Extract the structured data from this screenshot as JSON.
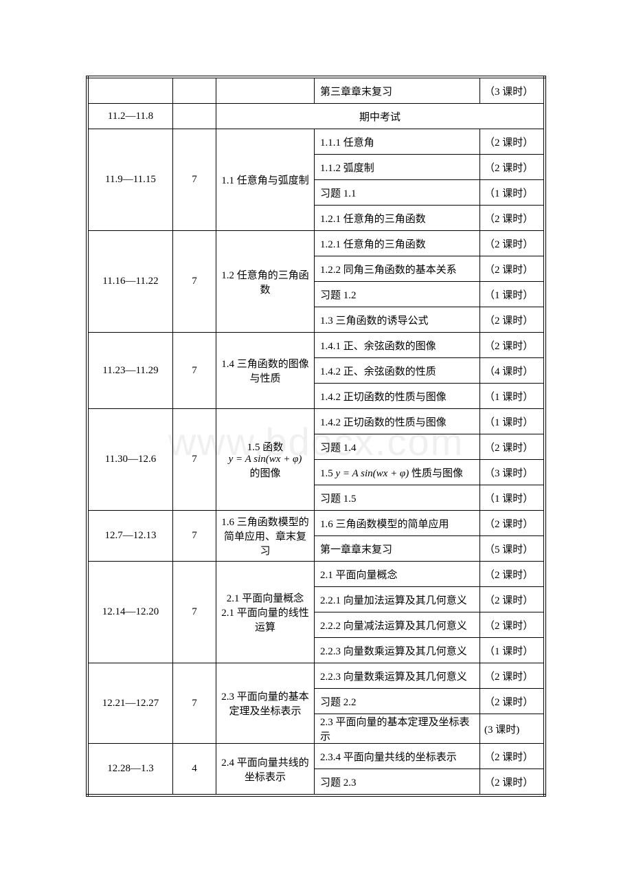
{
  "watermark": "www.bdocx.com",
  "rows": [
    {
      "period": "",
      "count": "",
      "section": "",
      "topic": "第三章章末复习",
      "hours": "（3 课时）"
    },
    {
      "period": "11.2—11.8",
      "count": "",
      "exam": "期中考试"
    },
    {
      "period": "11.9—11.15",
      "count": "7",
      "section": "1.1 任意角与弧度制",
      "items": [
        {
          "topic": "1.1.1 任意角",
          "hours": "（2 课时）"
        },
        {
          "topic": "1.1.2 弧度制",
          "hours": "（2 课时）"
        },
        {
          "topic": "习题 1.1",
          "hours": "（1 课时）"
        },
        {
          "topic": "1.2.1 任意角的三角函数",
          "hours": "（2 课时）"
        }
      ]
    },
    {
      "period": "11.16—11.22",
      "count": "7",
      "section": "1.2 任意角的三角函数",
      "items": [
        {
          "topic": "1.2.1 任意角的三角函数",
          "hours": "（2 课时）"
        },
        {
          "topic": "1.2.2 同角三角函数的基本关系",
          "hours": "（2 课时）"
        },
        {
          "topic": "习题 1.2",
          "hours": "（1 课时）"
        },
        {
          "topic": "1.3 三角函数的诱导公式",
          "hours": "（2 课时）"
        }
      ]
    },
    {
      "period": "11.23—11.29",
      "count": "7",
      "section": "1.4 三角函数的图像与性质",
      "items": [
        {
          "topic": "1.4.1 正、余弦函数的图像",
          "hours": "（2 课时）"
        },
        {
          "topic": "1.4.2 正、余弦函数的性质",
          "hours": "（4 课时）"
        },
        {
          "topic": "1.4.2 正切函数的性质与图像",
          "hours": "（1 课时）"
        }
      ]
    },
    {
      "period": "11.30—12.6",
      "count": "7",
      "section_pre": "1.5 函数",
      "section_formula": "y = A sin(wx + φ)",
      "section_post": "的图像",
      "items": [
        {
          "topic": "1.4.2 正切函数的性质与图像",
          "hours": "（1 课时）"
        },
        {
          "topic": "习题 1.4",
          "hours": "（2 课时）"
        },
        {
          "topic_pre": "1.5 ",
          "topic_formula": "y = A sin(wx + φ)",
          "topic_post": " 性质与图像",
          "hours": "（3 课时）"
        },
        {
          "topic": "习题 1.5",
          "hours": "（1 课时）"
        }
      ]
    },
    {
      "period": "12.7—12.13",
      "count": "7",
      "section": "1.6  三角函数模型的简单应用、章末复习",
      "items": [
        {
          "topic": "1.6 三角函数模型的简单应用",
          "hours": "（2 课时）"
        },
        {
          "topic": "第一章章末复习",
          "hours": "（5 课时）"
        }
      ]
    },
    {
      "period": "12.14—12.20",
      "count": "7",
      "section": "2.1  平面向量概念\n2.1  平面向量的线性运算",
      "items": [
        {
          "topic": "2.1 平面向量概念",
          "hours": "（2 课时）"
        },
        {
          "topic": "2.2.1 向量加法运算及其几何意义",
          "hours": "（2 课时）"
        },
        {
          "topic": "2.2.2 向量减法运算及其几何意义",
          "hours": "（2 课时）"
        },
        {
          "topic": "2.2.3 向量数乘运算及其几何意义",
          "hours": "（1 课时）"
        }
      ]
    },
    {
      "period": "12.21—12.27",
      "count": "7",
      "section": "2.3 平面向量的基本定理及坐标表示",
      "items": [
        {
          "topic": "2.2.3 向量数乘运算及其几何意义",
          "hours": "（2 课时）"
        },
        {
          "topic": "习题 2.2",
          "hours": "（2 课时）"
        },
        {
          "topic": "2.3 平面向量的基本定理及坐标表示",
          "hours": "(3 课时)"
        }
      ]
    },
    {
      "period": "12.28—1.3",
      "count": "4",
      "section": "2.4  平面向量共线的坐标表示",
      "items": [
        {
          "topic": "2.3.4 平面向量共线的坐标表示",
          "hours": "（2 课时）"
        },
        {
          "topic": "习题 2.3",
          "hours": "（2 课时）"
        }
      ]
    }
  ]
}
